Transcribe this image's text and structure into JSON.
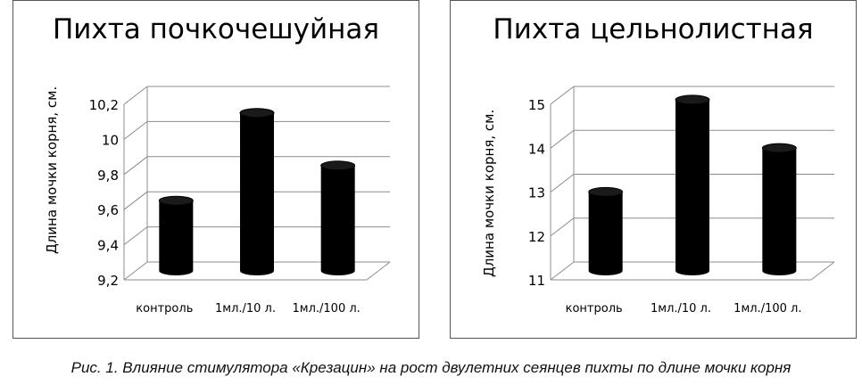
{
  "caption": "Рис. 1. Влияние стимулятора «Крезацин» на рост двулетних сеянцев пихты по длине мочки корня",
  "chart_data": [
    {
      "type": "bar",
      "title": "Пихта почкочешуйная",
      "ylabel": "Длина мочки корня, см.",
      "xlabel": "",
      "categories": [
        "контроль",
        "1мл./10 л.",
        "1мл./100 л."
      ],
      "values": [
        9.6,
        10.1,
        9.8
      ],
      "ylim": [
        9.2,
        10.2
      ],
      "yticks": [
        "9,2",
        "9,4",
        "9,6",
        "9,8",
        "10",
        "10,2"
      ],
      "grid": true,
      "bar_color": "#000000"
    },
    {
      "type": "bar",
      "title": "Пихта цельнолистная",
      "ylabel": "Длина мочки корня, см.",
      "xlabel": "",
      "categories": [
        "контроль",
        "1мл./10 л.",
        "1мл./100 л."
      ],
      "values": [
        12.8,
        14.9,
        13.8
      ],
      "ylim": [
        11,
        15
      ],
      "yticks": [
        "11",
        "12",
        "13",
        "14",
        "15"
      ],
      "grid": true,
      "bar_color": "#000000"
    }
  ]
}
